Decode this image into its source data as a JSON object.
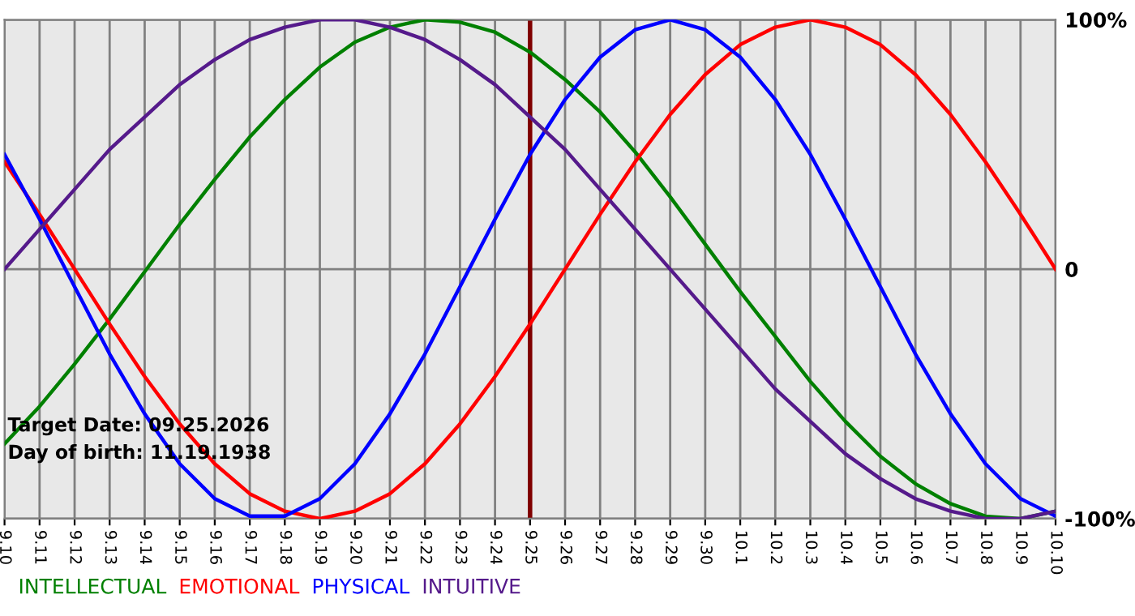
{
  "chart_data": {
    "type": "line",
    "categories": [
      "9.10",
      "9.11",
      "9.12",
      "9.13",
      "9.14",
      "9.15",
      "9.16",
      "9.17",
      "9.18",
      "9.19",
      "9.20",
      "9.21",
      "9.22",
      "9.23",
      "9.24",
      "9.25",
      "9.26",
      "9.27",
      "9.28",
      "9.29",
      "9.30",
      "10.1",
      "10.2",
      "10.3",
      "10.4",
      "10.5",
      "10.6",
      "10.7",
      "10.8",
      "10.9",
      "10.10"
    ],
    "series": [
      {
        "name": "INTELLECTUAL",
        "color": "#008000",
        "values": [
          -70,
          -55,
          -38,
          -20,
          -1,
          18,
          36,
          53,
          68,
          81,
          91,
          97,
          100,
          99,
          95,
          87,
          76,
          63,
          47,
          29,
          10,
          -9,
          -27,
          -45,
          -61,
          -75,
          -86,
          -94,
          -99,
          -100,
          -97
        ]
      },
      {
        "name": "EMOTIONAL",
        "color": "#ff0000",
        "values": [
          43,
          22,
          0,
          -22,
          -43,
          -62,
          -78,
          -90,
          -97,
          -100,
          -97,
          -90,
          -78,
          -62,
          -43,
          -22,
          0,
          22,
          43,
          62,
          78,
          90,
          97,
          100,
          97,
          90,
          78,
          62,
          43,
          22,
          0
        ]
      },
      {
        "name": "PHYSICAL",
        "color": "#0000ff",
        "values": [
          46,
          20,
          -7,
          -34,
          -58,
          -78,
          -92,
          -99,
          -99,
          -92,
          -78,
          -58,
          -34,
          -7,
          20,
          46,
          68,
          85,
          96,
          100,
          96,
          85,
          68,
          46,
          20,
          -7,
          -34,
          -58,
          -78,
          -92,
          -99
        ]
      },
      {
        "name": "INTUITIVE",
        "color": "#551a8b",
        "values": [
          0,
          16,
          32,
          48,
          61,
          74,
          84,
          92,
          97,
          100,
          100,
          97,
          92,
          84,
          74,
          61,
          48,
          32,
          16,
          0,
          -16,
          -32,
          -48,
          -61,
          -74,
          -84,
          -92,
          -97,
          -100,
          -100,
          -97
        ]
      }
    ],
    "ylim": [
      -100,
      100
    ],
    "yticks": [
      {
        "value": 100,
        "label": "100%"
      },
      0,
      {
        "value": -100,
        "label": "-100%"
      }
    ],
    "ref_lines": [
      {
        "axis": "x",
        "value": "9.25",
        "color": "#800000"
      }
    ],
    "annotations": [
      "Target Date: 09.25.2026",
      "Day of birth: 11.19.1938"
    ],
    "grid": true,
    "legend": "bottom",
    "marker": "none",
    "line_style": "solid"
  }
}
